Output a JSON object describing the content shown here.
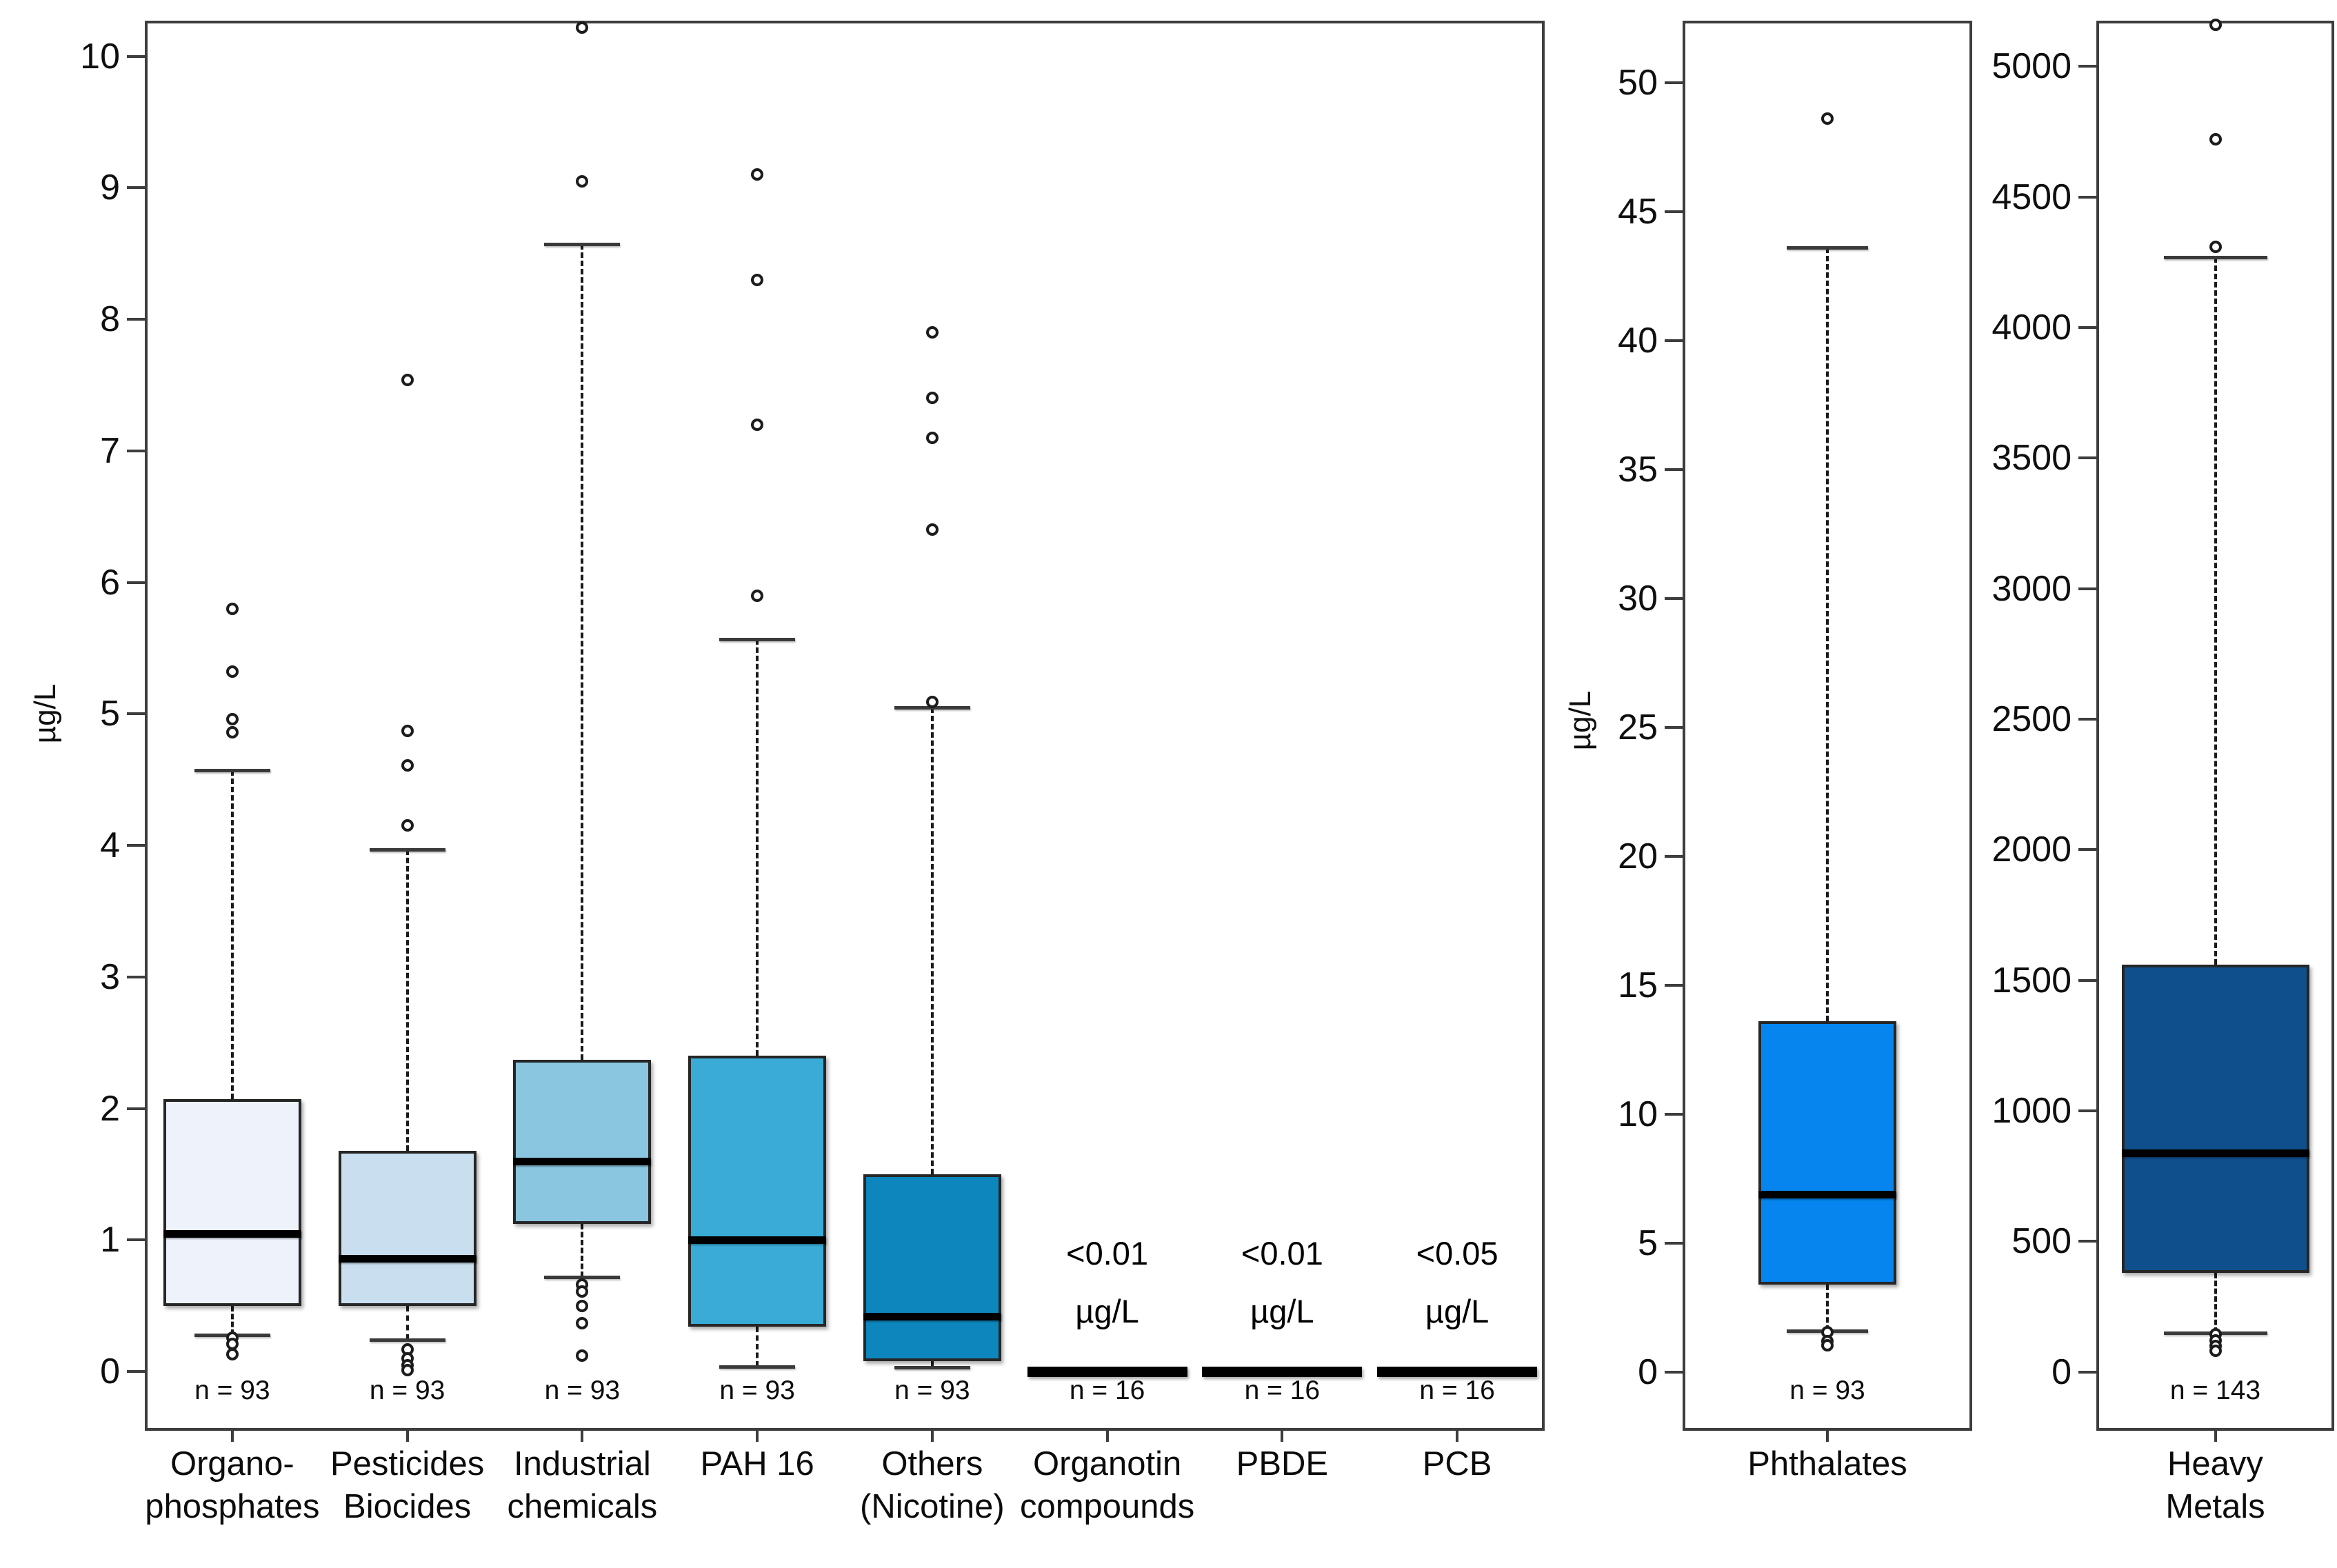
{
  "figure": {
    "units_label_main": "µg/L",
    "units_label_phthalates": "µg/L"
  },
  "colors": {
    "background": "#ffffff",
    "frame": "#3d3d3d",
    "text": "#0c0c0c",
    "median": "#000000",
    "whisker": "#1a1a1a",
    "box_border": "#262626",
    "fill_organophosphates": "#edf2fb",
    "fill_pesticides": "#c9dff0",
    "fill_industrial": "#8ac6df",
    "fill_pah16": "#39abd6",
    "fill_others": "#0d86bd",
    "fill_phthalates": "#0685ee",
    "fill_heavy_metals": "#0f4f8c"
  },
  "chart_data": {
    "type": "boxplot",
    "title": "",
    "units": "µg/L",
    "legend": "none",
    "grid": false,
    "panels": [
      {
        "name": "main",
        "ylabel": "µg/L",
        "ylim": [
          -0.45,
          10.27
        ],
        "yticks": [
          0,
          1,
          2,
          3,
          4,
          5,
          6,
          7,
          8,
          9,
          10
        ],
        "categories": [
          "Organo-phosphates",
          "Pesticides Biocides",
          "Industrial chemicals",
          "PAH 16",
          "Others (Nicotine)",
          "Organotin compounds",
          "PBDE",
          "PCB"
        ],
        "series": [
          {
            "category": "Organo-phosphates",
            "label_lines": [
              "Organo-",
              "phosphates"
            ],
            "n": "n = 93",
            "fill": "#edf2fb",
            "stats": {
              "whisker_low": 0.28,
              "q1": 0.5,
              "median": 1.05,
              "q3": 2.07,
              "whisker_high": 4.57
            },
            "outliers_high": [
              4.86,
              4.96,
              5.32,
              5.8
            ],
            "outliers_low": [
              0.26,
              0.21,
              0.13
            ]
          },
          {
            "category": "Pesticides Biocides",
            "label_lines": [
              "Pesticides",
              "Biocides"
            ],
            "n": "n = 93",
            "fill": "#c9dff0",
            "stats": {
              "whisker_low": 0.24,
              "q1": 0.5,
              "median": 0.86,
              "q3": 1.68,
              "whisker_high": 3.97
            },
            "outliers_high": [
              4.15,
              4.61,
              4.87,
              7.54
            ],
            "outliers_low": [
              0.17,
              0.1,
              0.05,
              0.01
            ]
          },
          {
            "category": "Industrial chemicals",
            "label_lines": [
              "Industrial",
              "chemicals"
            ],
            "n": "n = 93",
            "fill": "#8ac6df",
            "stats": {
              "whisker_low": 0.72,
              "q1": 1.12,
              "median": 1.6,
              "q3": 2.37,
              "whisker_high": 8.57
            },
            "outliers_high": [
              9.05,
              10.22
            ],
            "outliers_low": [
              0.66,
              0.61,
              0.5,
              0.37,
              0.12
            ]
          },
          {
            "category": "PAH 16",
            "label_lines": [
              "PAH 16"
            ],
            "n": "n = 93",
            "fill": "#39abd6",
            "stats": {
              "whisker_low": 0.04,
              "q1": 0.34,
              "median": 1.0,
              "q3": 2.4,
              "whisker_high": 5.57
            },
            "outliers_high": [
              5.9,
              7.2,
              8.3,
              9.1
            ],
            "outliers_low": []
          },
          {
            "category": "Others (Nicotine)",
            "label_lines": [
              "Others",
              "(Nicotine)"
            ],
            "n": "n = 93",
            "fill": "#0d86bd",
            "stats": {
              "whisker_low": 0.03,
              "q1": 0.08,
              "median": 0.42,
              "q3": 1.5,
              "whisker_high": 5.05
            },
            "outliers_high": [
              5.09,
              6.4,
              7.1,
              7.4,
              7.9
            ],
            "outliers_low": []
          },
          {
            "category": "Organotin compounds",
            "label_lines": [
              "Organotin",
              "compounds"
            ],
            "n": "n = 16",
            "censored": true,
            "censored_lines": [
              "<0.01",
              "µg/L"
            ]
          },
          {
            "category": "PBDE",
            "label_lines": [
              "PBDE"
            ],
            "n": "n = 16",
            "censored": true,
            "censored_lines": [
              "<0.01",
              "µg/L"
            ]
          },
          {
            "category": "PCB",
            "label_lines": [
              "PCB"
            ],
            "n": "n = 16",
            "censored": true,
            "censored_lines": [
              "<0.05",
              "µg/L"
            ]
          }
        ]
      },
      {
        "name": "phthalates",
        "ylabel": "µg/L",
        "ylim": [
          -2.27,
          52.4
        ],
        "yticks": [
          0,
          5,
          10,
          15,
          20,
          25,
          30,
          35,
          40,
          45,
          50
        ],
        "categories": [
          "Phthalates"
        ],
        "series": [
          {
            "category": "Phthalates",
            "label_lines": [
              "Phthalates"
            ],
            "n": "n = 93",
            "fill": "#0685ee",
            "stats": {
              "whisker_low": 1.6,
              "q1": 3.4,
              "median": 6.9,
              "q3": 13.6,
              "whisker_high": 43.6
            },
            "outliers_high": [
              48.6
            ],
            "outliers_low": [
              1.55,
              1.2,
              1.05
            ]
          }
        ]
      },
      {
        "name": "heavy-metals",
        "ylabel": "",
        "ylim": [
          -225,
          5175
        ],
        "yticks": [
          0,
          500,
          1000,
          1500,
          2000,
          2500,
          3000,
          3500,
          4000,
          4500,
          5000
        ],
        "categories": [
          "Heavy Metals"
        ],
        "series": [
          {
            "category": "Heavy Metals",
            "label_lines": [
              "Heavy",
              "Metals"
            ],
            "n": "n = 143",
            "fill": "#0f4f8c",
            "stats": {
              "whisker_low": 150,
              "q1": 380,
              "median": 840,
              "q3": 1560,
              "whisker_high": 4270
            },
            "outliers_high": [
              4310,
              4720,
              5160
            ],
            "outliers_low": [
              145,
              120,
              100,
              80
            ]
          }
        ]
      }
    ]
  }
}
